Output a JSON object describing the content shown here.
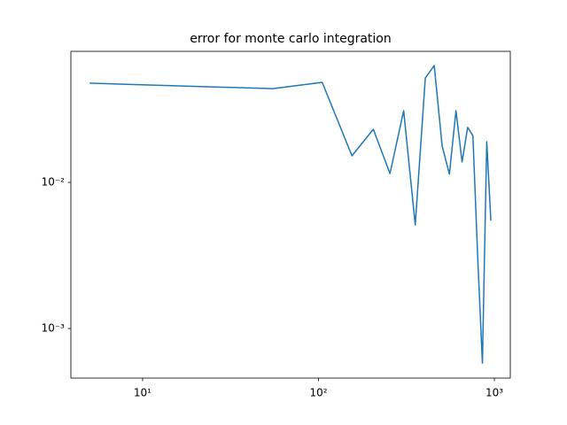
{
  "chart_data": {
    "type": "line",
    "title": "error for monte carlo integration",
    "x": [
      5,
      55,
      105,
      155,
      205,
      255,
      305,
      355,
      405,
      455,
      505,
      555,
      605,
      655,
      705,
      755,
      805,
      855,
      905,
      955
    ],
    "series": [
      {
        "color": "#1f77b4",
        "values": [
          0.0478,
          0.0438,
          0.0484,
          0.0152,
          0.0231,
          0.0115,
          0.031,
          0.00512,
          0.0519,
          0.0631,
          0.0177,
          0.0114,
          0.031,
          0.0138,
          0.0238,
          0.0209,
          0.00297,
          0.00058,
          0.019,
          0.00548
        ]
      }
    ],
    "xscale": "log",
    "yscale": "log",
    "xlim": [
      3.91,
      1232
    ],
    "ylim": [
      0.000458,
      0.0789
    ],
    "xticks": [
      {
        "value": 10,
        "label": "10¹"
      },
      {
        "value": 100,
        "label": "10²"
      },
      {
        "value": 1000,
        "label": "10³"
      }
    ],
    "yticks": [
      {
        "value": 0.001,
        "label": "10⁻³"
      },
      {
        "value": 0.01,
        "label": "10⁻²"
      }
    ],
    "grid": false
  }
}
